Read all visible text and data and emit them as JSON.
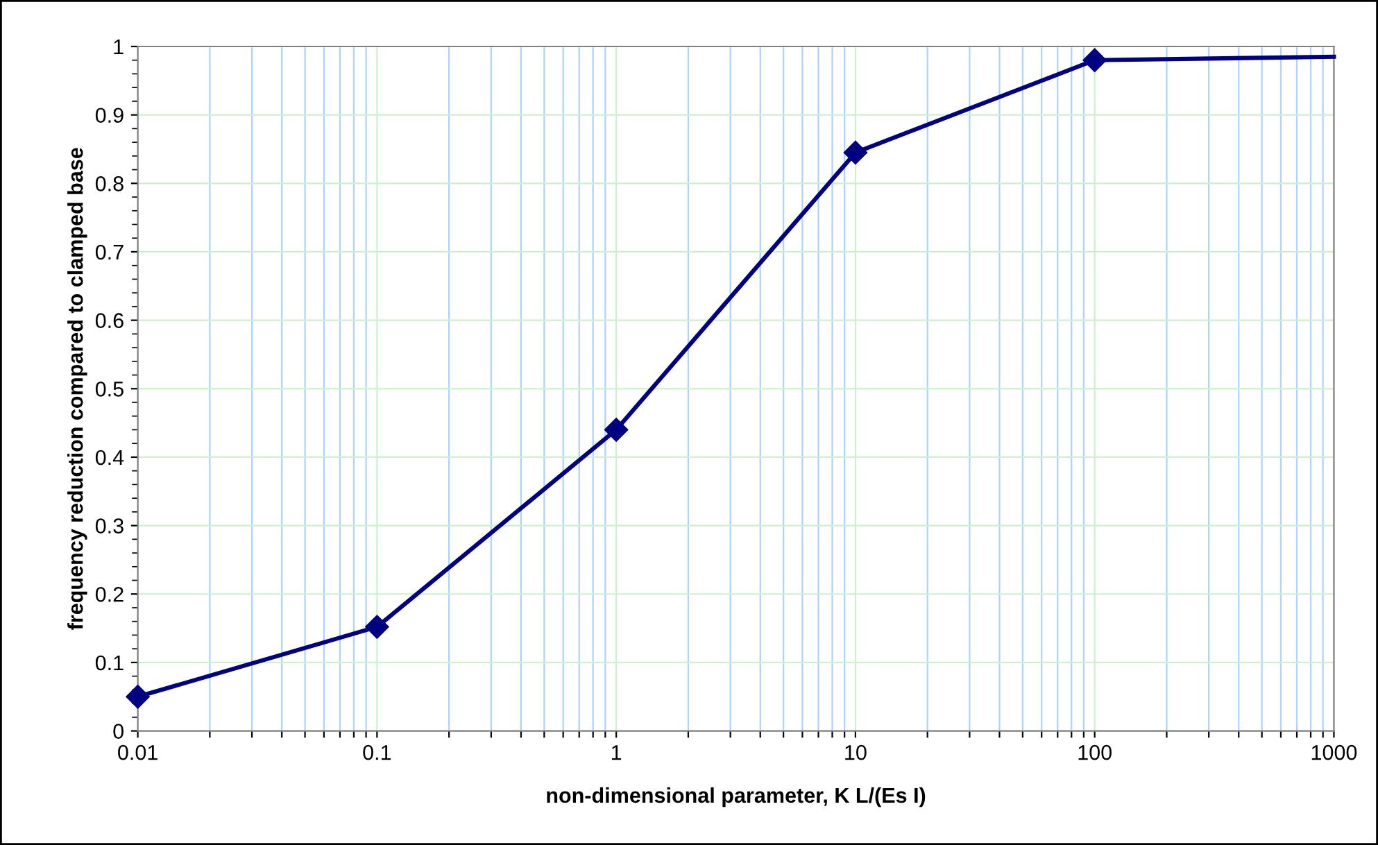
{
  "chart_data": {
    "type": "line",
    "xlabel": "non-dimensional parameter, K L/(Es I)",
    "ylabel": "frequency reduction compared to clamped base",
    "log": "x",
    "xlim": [
      0.01,
      1000
    ],
    "xticks": [
      0.01,
      {
        "value": 0.02,
        "label": null
      },
      {
        "value": 0.03,
        "label": null
      },
      {
        "value": 0.04,
        "label": null
      },
      {
        "value": 0.05,
        "label": null
      },
      {
        "value": 0.06,
        "label": null
      },
      {
        "value": 0.07,
        "label": null
      },
      {
        "value": 0.08,
        "label": null
      },
      {
        "value": 0.09,
        "label": null
      },
      0.1,
      {
        "value": 0.2,
        "label": null
      },
      {
        "value": 0.3,
        "label": null
      },
      {
        "value": 0.4,
        "label": null
      },
      {
        "value": 0.5,
        "label": null
      },
      {
        "value": 0.6,
        "label": null
      },
      {
        "value": 0.7,
        "label": null
      },
      {
        "value": 0.8,
        "label": null
      },
      {
        "value": 0.9,
        "label": null
      },
      1,
      {
        "value": 2,
        "label": null
      },
      {
        "value": 3,
        "label": null
      },
      {
        "value": 4,
        "label": null
      },
      {
        "value": 5,
        "label": null
      },
      {
        "value": 6,
        "label": null
      },
      {
        "value": 7,
        "label": null
      },
      {
        "value": 8,
        "label": null
      },
      {
        "value": 9,
        "label": null
      },
      10,
      {
        "value": 20,
        "label": null
      },
      {
        "value": 30,
        "label": null
      },
      {
        "value": 40,
        "label": null
      },
      {
        "value": 50,
        "label": null
      },
      {
        "value": 60,
        "label": null
      },
      {
        "value": 70,
        "label": null
      },
      {
        "value": 80,
        "label": null
      },
      {
        "value": 90,
        "label": null
      },
      100,
      {
        "value": 200,
        "label": null
      },
      {
        "value": 300,
        "label": null
      },
      {
        "value": 400,
        "label": null
      },
      {
        "value": 500,
        "label": null
      },
      {
        "value": 600,
        "label": null
      },
      {
        "value": 700,
        "label": null
      },
      {
        "value": 800,
        "label": null
      },
      {
        "value": 900,
        "label": null
      },
      1000
    ],
    "ylim": [
      0,
      1
    ],
    "yticks": [
      0,
      0.1,
      0.2,
      0.3,
      0.4,
      0.5,
      0.6,
      0.7,
      0.8,
      0.9,
      1
    ],
    "grid": true,
    "series": [
      {
        "color": "#000080",
        "x": [
          0.01,
          0.1,
          1,
          10,
          100
        ],
        "values": [
          0.05,
          0.152,
          0.44,
          0.845,
          0.98
        ],
        "marker": "diamond",
        "line_style": "solid"
      },
      {
        "color": "#000080",
        "x": [
          100,
          1000
        ],
        "values": [
          0.98,
          0.985
        ],
        "marker": "none",
        "line_style": "solid"
      }
    ]
  }
}
